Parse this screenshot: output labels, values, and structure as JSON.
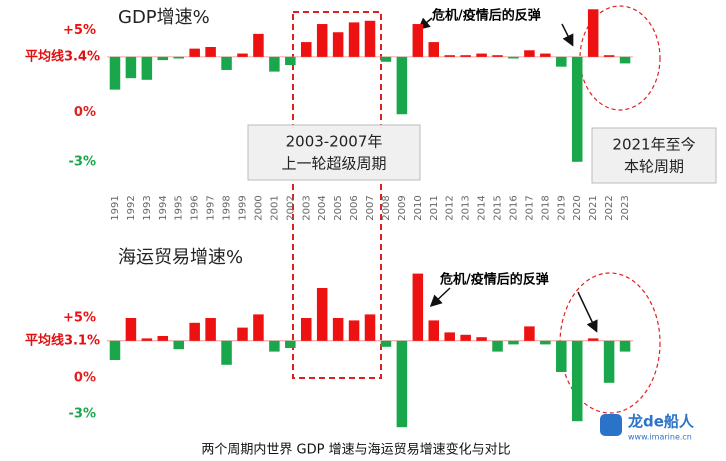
{
  "chart_data": [
    {
      "type": "bar",
      "title": "GDP增速%",
      "categories": [
        "1991",
        "1992",
        "1993",
        "1994",
        "1995",
        "1996",
        "1997",
        "1998",
        "1999",
        "2000",
        "2001",
        "2002",
        "2003",
        "2004",
        "2005",
        "2006",
        "2007",
        "2008",
        "2009",
        "2010",
        "2011",
        "2012",
        "2013",
        "2014",
        "2015",
        "2016",
        "2017",
        "2018",
        "2019",
        "2020",
        "2021",
        "2022",
        "2023"
      ],
      "values": [
        1.4,
        2.1,
        2.0,
        3.2,
        3.3,
        3.9,
        4.0,
        2.6,
        3.6,
        4.8,
        2.5,
        2.9,
        4.3,
        5.4,
        4.9,
        5.5,
        5.6,
        3.1,
        -0.1,
        5.4,
        4.3,
        3.5,
        3.5,
        3.6,
        3.5,
        3.3,
        3.8,
        3.6,
        2.8,
        -3.0,
        6.3,
        3.5,
        3.0
      ],
      "average": {
        "value": 3.4,
        "label": "平均线3.4%"
      },
      "colors": {
        "above": "#ee1111",
        "below": "#1aa64a"
      },
      "ylim": [
        -3.5,
        6.5
      ],
      "yticks": [
        {
          "value": 5,
          "label": "+5%"
        },
        {
          "value": 0,
          "label": "0%"
        },
        {
          "value": -3,
          "label": "-3%"
        }
      ],
      "annotations": [
        "危机/疫情后的反弹",
        "2003-2007年",
        "上一轮超级周期",
        "2021年至今",
        "本轮周期"
      ]
    },
    {
      "type": "bar",
      "title": "海运贸易增速%",
      "values": [
        1.5,
        5.0,
        3.3,
        3.5,
        2.4,
        4.6,
        5.0,
        1.1,
        4.2,
        5.3,
        2.2,
        2.5,
        5.0,
        7.5,
        5.0,
        4.8,
        5.3,
        2.6,
        -4.1,
        8.7,
        4.8,
        3.8,
        3.6,
        3.4,
        2.2,
        2.8,
        4.3,
        2.8,
        0.5,
        -3.6,
        3.3,
        -0.4,
        2.2
      ],
      "average": {
        "value": 3.1,
        "label": "平均线3.1%"
      },
      "colors": {
        "above": "#ee1111",
        "below": "#1aa64a"
      },
      "ylim": [
        -4.5,
        9.5
      ],
      "yticks": [
        {
          "value": 5,
          "label": "+5%"
        },
        {
          "value": 0,
          "label": "0%"
        },
        {
          "value": -3,
          "label": "-3%"
        }
      ],
      "annotations": [
        "危机/疫情后的反弹"
      ]
    }
  ],
  "caption": "两个周期内世界 GDP 增速与海运贸易增速变化与对比",
  "watermark": {
    "name": "龙de船人",
    "url": "www.imarine.cn"
  }
}
